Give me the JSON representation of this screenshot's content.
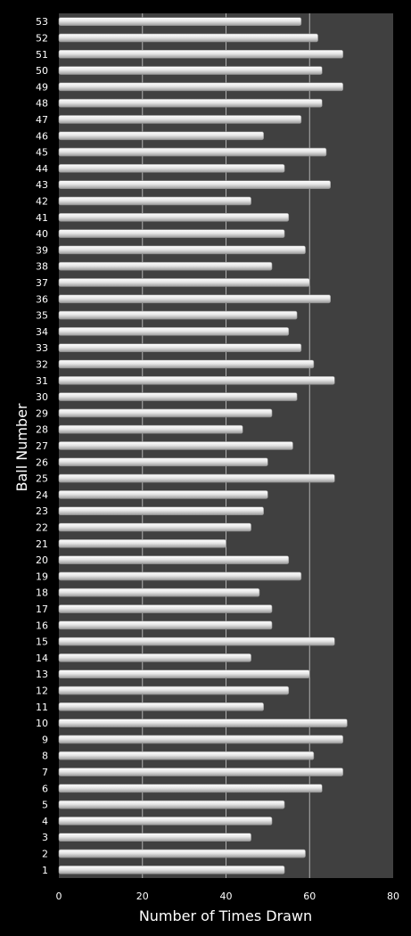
{
  "chart_data": {
    "type": "bar",
    "orientation": "horizontal",
    "title": "",
    "xlabel": "Number of Times Drawn",
    "ylabel": "Ball Number",
    "xlim": [
      0,
      80
    ],
    "xticks": [
      "0",
      "20",
      "40",
      "60",
      "80"
    ],
    "grid": true,
    "legend": "none",
    "colors": {
      "background": "#000000",
      "plot_area": "#404040",
      "bar": "#e6e6e6",
      "gridline": "#b0b0b0",
      "text": "#ffffff"
    },
    "categories": [
      "1",
      "2",
      "3",
      "4",
      "5",
      "6",
      "7",
      "8",
      "9",
      "10",
      "11",
      "12",
      "13",
      "14",
      "15",
      "16",
      "17",
      "18",
      "19",
      "20",
      "21",
      "22",
      "23",
      "24",
      "25",
      "26",
      "27",
      "28",
      "29",
      "30",
      "31",
      "32",
      "33",
      "34",
      "35",
      "36",
      "37",
      "38",
      "39",
      "40",
      "41",
      "42",
      "43",
      "44",
      "45",
      "46",
      "47",
      "48",
      "49",
      "50",
      "51",
      "52",
      "53"
    ],
    "values": [
      54,
      59,
      46,
      51,
      54,
      63,
      68,
      61,
      68,
      69,
      49,
      55,
      60,
      46,
      66,
      51,
      51,
      48,
      58,
      55,
      40,
      46,
      49,
      50,
      66,
      50,
      56,
      44,
      51,
      57,
      66,
      61,
      58,
      55,
      57,
      65,
      60,
      51,
      59,
      54,
      55,
      46,
      65,
      54,
      64,
      49,
      58,
      63,
      68,
      63,
      68,
      62,
      58
    ]
  }
}
